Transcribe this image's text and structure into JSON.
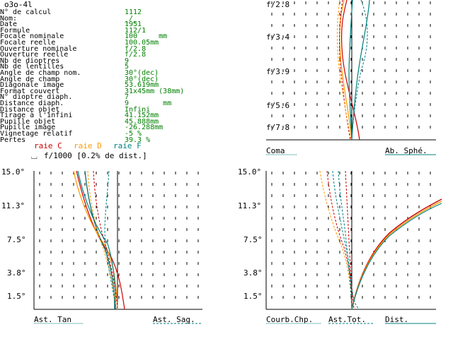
{
  "window_title": "o3o-4l",
  "lens_params": [
    {
      "label": "N° de calcul",
      "value": "1112"
    },
    {
      "label": "Nom:",
      "value": "_/_"
    },
    {
      "label": "Date",
      "value": "1951"
    },
    {
      "label": "Formule",
      "value": "112/1"
    },
    {
      "label": "Focale nominale",
      "value": "100     mm"
    },
    {
      "label": "Focale reelle",
      "value": "100.05mm"
    },
    {
      "label": "Ouverture nominale",
      "value": "f/2.8"
    },
    {
      "label": "Ouverture reelle",
      "value": "f/2.8"
    },
    {
      "label": "Nb de dioptres",
      "value": "9"
    },
    {
      "label": "Nb de lentilles",
      "value": "5"
    },
    {
      "label": "Angle de champ nom.",
      "value": "30°(dec)"
    },
    {
      "label": "Angle de champ",
      "value": "30°(dec)"
    },
    {
      "label": "Diagonale image",
      "value": "53.619mm"
    },
    {
      "label": "Format couvert",
      "value": "31x45mm (38mm)"
    },
    {
      "label": "N° dioptre diaph.",
      "value": "7"
    },
    {
      "label": "Distance diaph.",
      "value": "9        mm"
    },
    {
      "label": "Distance objet",
      "value": "Infini"
    },
    {
      "label": "Tirage à l'infini",
      "value": "41.152mm"
    },
    {
      "label": "Pupille objet",
      "value": "45.888mm"
    },
    {
      "label": "Pupille image",
      "value": "-26.288mm"
    },
    {
      "label": "Vignetage relatif",
      "value": "-5 %"
    },
    {
      "label": "Pertes",
      "value": "39.3 %"
    }
  ],
  "legend": {
    "c": "raie C",
    "d": "raie D",
    "f": "raie F",
    "scale_note": "f/1000 [0.2% de dist.]"
  },
  "colors": {
    "raie_c": "#cc0000",
    "raie_d": "#ff9900",
    "raie_f": "#008080",
    "value_text": "#008000"
  },
  "panels": {
    "top_right": {
      "y_ticks": [
        "f/2.8",
        "f/3.4",
        "f/3.9",
        "f/5.6",
        "f/7.8"
      ],
      "left_label": "Coma",
      "right_label": "Ab. Sphé."
    },
    "bottom_left": {
      "y_ticks": [
        "15.0°",
        "11.3°",
        "7.5°",
        "3.8°",
        "1.5°"
      ],
      "left_label": "Ast. Tan",
      "right_label": "Ast. Sag."
    },
    "bottom_right": {
      "y_ticks": [
        "15.0°",
        "11.3°",
        "7.5°",
        "3.8°",
        "1.5°"
      ],
      "left_label": "Courb.Chp.",
      "mid_label": "Ast.Tot.",
      "right_label": "Dist."
    }
  }
}
